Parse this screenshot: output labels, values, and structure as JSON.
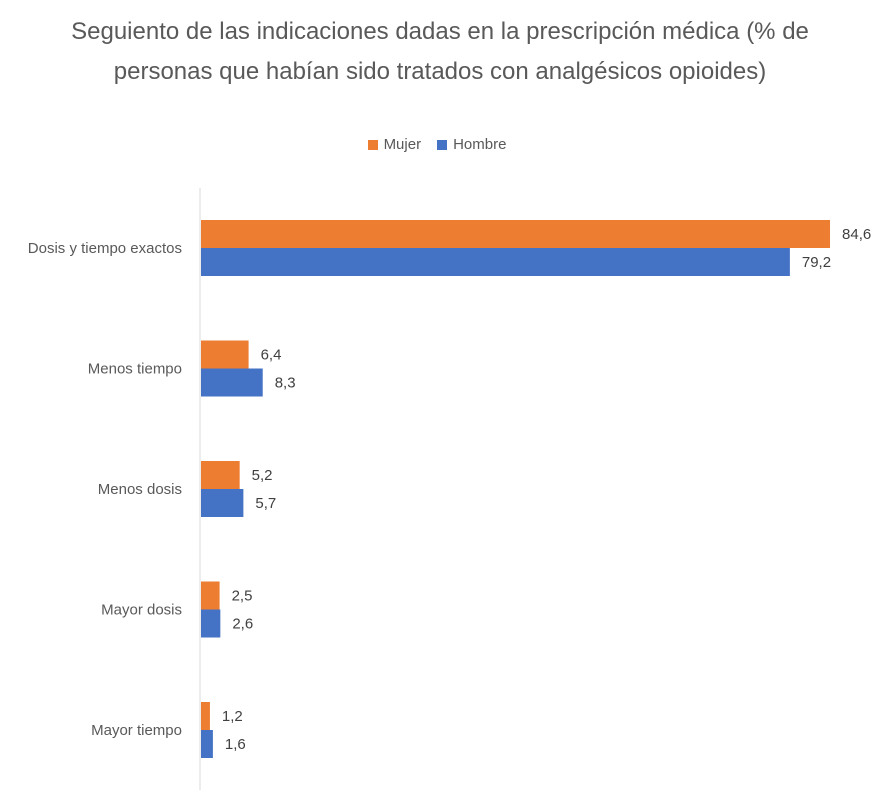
{
  "chart_data": {
    "type": "bar",
    "orientation": "horizontal",
    "title": "Seguiento de las indicaciones dadas en la prescripción médica (% de personas que habían sido tratados con analgésicos opioides)",
    "categories": [
      "Dosis y tiempo exactos",
      "Menos tiempo",
      "Menos dosis",
      "Mayor dosis",
      "Mayor tiempo"
    ],
    "series": [
      {
        "name": "Mujer",
        "color": "#ED7D31",
        "values": [
          84.6,
          6.4,
          5.2,
          2.5,
          1.2
        ],
        "labels": [
          "84,6",
          "6,4",
          "5,2",
          "2,5",
          "1,2"
        ]
      },
      {
        "name": "Hombre",
        "color": "#4472C4",
        "values": [
          79.2,
          8.3,
          5.7,
          2.6,
          1.6
        ],
        "labels": [
          "79,2",
          "8,3",
          "5,7",
          "2,6",
          "1,6"
        ]
      }
    ],
    "xlim": [
      0,
      85
    ],
    "grid": false,
    "legend_position": "top"
  }
}
